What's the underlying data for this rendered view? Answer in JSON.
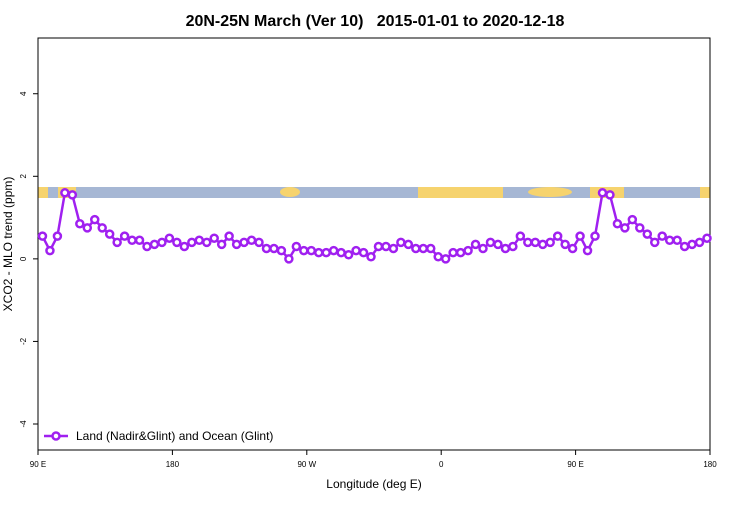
{
  "chart_data": {
    "type": "line",
    "title": "20N-25N March (Ver 10)   2015-01-01 to 2020-12-18",
    "x_label": "Longitude (deg E)",
    "y_label": "XCO2 - MLO trend (ppm)",
    "x": [
      93,
      98,
      103,
      108,
      113,
      118,
      123,
      128,
      133,
      138,
      143,
      148,
      153,
      158,
      163,
      168,
      173,
      178,
      183,
      188,
      193,
      198,
      203,
      208,
      213,
      218,
      223,
      228,
      233,
      238,
      243,
      248,
      253,
      258,
      263,
      268,
      273,
      278,
      283,
      288,
      293,
      298,
      303,
      308,
      313,
      318,
      323,
      328,
      333,
      338,
      343,
      348,
      353,
      358,
      363,
      368,
      373,
      378,
      383,
      388,
      393,
      398,
      403,
      408,
      413,
      418,
      423,
      428,
      433,
      438,
      443,
      448,
      453,
      458,
      463,
      468,
      473,
      478,
      483,
      488,
      493,
      498,
      503,
      508,
      513,
      518,
      523,
      528,
      533,
      538
    ],
    "series": [
      {
        "name": "Land (Nadir&Glint) and Ocean (Glint)",
        "color": "#a020f0",
        "values": [
          0.55,
          0.2,
          0.55,
          1.6,
          1.55,
          0.85,
          0.75,
          0.95,
          0.75,
          0.6,
          0.4,
          0.55,
          0.45,
          0.45,
          0.3,
          0.35,
          0.4,
          0.5,
          0.4,
          0.3,
          0.4,
          0.45,
          0.4,
          0.5,
          0.35,
          0.55,
          0.35,
          0.4,
          0.45,
          0.4,
          0.25,
          0.25,
          0.2,
          0.0,
          0.3,
          0.2,
          0.2,
          0.15,
          0.15,
          0.2,
          0.15,
          0.1,
          0.2,
          0.15,
          0.05,
          0.3,
          0.3,
          0.25,
          0.4,
          0.35,
          0.25,
          0.25,
          0.25,
          0.05,
          0.0,
          0.15,
          0.15,
          0.2,
          0.35,
          0.25,
          0.4,
          0.35,
          0.25,
          0.3,
          0.55,
          0.4,
          0.4,
          0.35,
          0.4,
          0.55,
          0.35,
          0.25,
          0.55,
          0.2,
          0.55,
          1.6,
          1.55,
          0.85,
          0.75,
          0.95,
          0.75,
          0.6,
          0.4,
          0.55,
          0.45,
          0.45,
          0.3,
          0.35,
          0.4,
          0.5
        ]
      }
    ],
    "xlim": [
      90,
      540
    ],
    "xticks": [
      {
        "value": 90,
        "label": "90 E"
      },
      180,
      {
        "value": 270,
        "label": "90 W"
      },
      {
        "value": 360,
        "label": "0"
      },
      {
        "value": 450,
        "label": "90 E"
      },
      {
        "value": 540,
        "label": "180"
      }
    ],
    "ylim": [
      -4.63,
      5.35
    ],
    "yticks": [
      -4,
      -2,
      0,
      2,
      4
    ],
    "legend": "bottomleft"
  }
}
